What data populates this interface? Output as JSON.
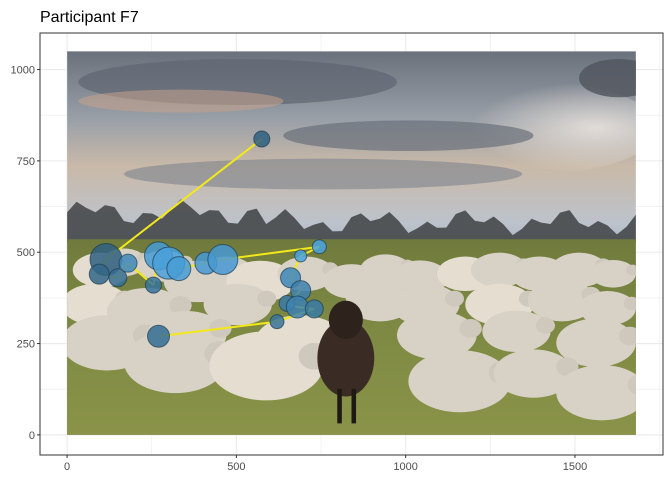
{
  "chart_data": {
    "type": "scatter",
    "title": "Participant F7",
    "xlabel": "",
    "ylabel": "",
    "xlim": [
      -80,
      1760
    ],
    "ylim": [
      -55,
      1100
    ],
    "x_ticks": [
      0,
      500,
      1000,
      1500
    ],
    "y_ticks": [
      0,
      250,
      500,
      750,
      1000
    ],
    "grid": true,
    "background_image": {
      "extent_x": [
        0,
        1680
      ],
      "extent_y": [
        0,
        1050
      ],
      "description_icon": "sheep-field-photo"
    },
    "colors": {
      "path": "#f2e81a",
      "fixation_dark": "#2f5f80",
      "fixation_light": "#4aa3e0",
      "panel_border": "#333333",
      "grid": "#ebebeb"
    },
    "fixations": [
      {
        "x": 575,
        "y": 810,
        "size": 8,
        "shade": 0
      },
      {
        "x": 115,
        "y": 480,
        "size": 16,
        "shade": 0
      },
      {
        "x": 95,
        "y": 440,
        "size": 10,
        "shade": 0.1
      },
      {
        "x": 150,
        "y": 430,
        "size": 9,
        "shade": 0.2
      },
      {
        "x": 180,
        "y": 470,
        "size": 9,
        "shade": 0.6
      },
      {
        "x": 255,
        "y": 410,
        "size": 8,
        "shade": 0.3
      },
      {
        "x": 270,
        "y": 490,
        "size": 14,
        "shade": 0.9
      },
      {
        "x": 300,
        "y": 470,
        "size": 16,
        "shade": 0.95
      },
      {
        "x": 330,
        "y": 455,
        "size": 12,
        "shade": 0.9
      },
      {
        "x": 410,
        "y": 470,
        "size": 11,
        "shade": 0.85
      },
      {
        "x": 460,
        "y": 480,
        "size": 15,
        "shade": 0.85
      },
      {
        "x": 745,
        "y": 515,
        "size": 7,
        "shade": 1
      },
      {
        "x": 690,
        "y": 490,
        "size": 6,
        "shade": 1
      },
      {
        "x": 660,
        "y": 430,
        "size": 10,
        "shade": 0.6
      },
      {
        "x": 690,
        "y": 395,
        "size": 10,
        "shade": 0.5
      },
      {
        "x": 650,
        "y": 360,
        "size": 8,
        "shade": 0.4
      },
      {
        "x": 680,
        "y": 350,
        "size": 11,
        "shade": 0.5
      },
      {
        "x": 730,
        "y": 345,
        "size": 9,
        "shade": 0.4
      },
      {
        "x": 620,
        "y": 310,
        "size": 7,
        "shade": 0.3
      },
      {
        "x": 270,
        "y": 270,
        "size": 11,
        "shade": 0.2
      }
    ],
    "path_order": [
      0,
      1,
      2,
      3,
      4,
      5,
      6,
      7,
      8,
      9,
      10,
      11,
      12,
      13,
      14,
      15,
      16,
      17,
      18,
      19
    ]
  }
}
